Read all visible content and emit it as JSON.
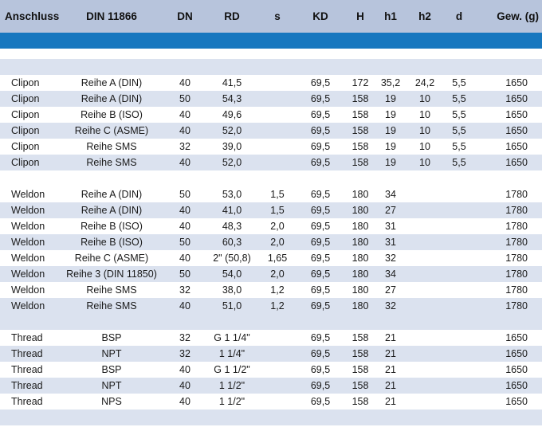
{
  "headers": [
    "Anschluss",
    "DIN 11866",
    "DN",
    "RD",
    "s",
    "KD",
    "H",
    "h1",
    "h2",
    "d",
    "Gew. (g)"
  ],
  "clipon_rows": [
    [
      "Clipon",
      "Reihe A (DIN)",
      "40",
      "41,5",
      "",
      "69,5",
      "172",
      "35,2",
      "24,2",
      "5,5",
      "1650"
    ],
    [
      "Clipon",
      "Reihe A (DIN)",
      "50",
      "54,3",
      "",
      "69,5",
      "158",
      "19",
      "10",
      "5,5",
      "1650"
    ],
    [
      "Clipon",
      "Reihe B (ISO)",
      "40",
      "49,6",
      "",
      "69,5",
      "158",
      "19",
      "10",
      "5,5",
      "1650"
    ],
    [
      "Clipon",
      "Reihe C (ASME)",
      "40",
      "52,0",
      "",
      "69,5",
      "158",
      "19",
      "10",
      "5,5",
      "1650"
    ],
    [
      "Clipon",
      "Reihe SMS",
      "32",
      "39,0",
      "",
      "69,5",
      "158",
      "19",
      "10",
      "5,5",
      "1650"
    ],
    [
      "Clipon",
      "Reihe SMS",
      "40",
      "52,0",
      "",
      "69,5",
      "158",
      "19",
      "10",
      "5,5",
      "1650"
    ]
  ],
  "weldon_rows": [
    [
      "Weldon",
      "Reihe A (DIN)",
      "50",
      "53,0",
      "1,5",
      "69,5",
      "180",
      "34",
      "",
      "",
      "1780"
    ],
    [
      "Weldon",
      "Reihe A (DIN)",
      "40",
      "41,0",
      "1,5",
      "69,5",
      "180",
      "27",
      "",
      "",
      "1780"
    ],
    [
      "Weldon",
      "Reihe B (ISO)",
      "40",
      "48,3",
      "2,0",
      "69,5",
      "180",
      "31",
      "",
      "",
      "1780"
    ],
    [
      "Weldon",
      "Reihe B (ISO)",
      "50",
      "60,3",
      "2,0",
      "69,5",
      "180",
      "31",
      "",
      "",
      "1780"
    ],
    [
      "Weldon",
      "Reihe C (ASME)",
      "40",
      "2\" (50,8)",
      "1,65",
      "69,5",
      "180",
      "32",
      "",
      "",
      "1780"
    ],
    [
      "Weldon",
      "Reihe 3 (DIN 11850)",
      "50",
      "54,0",
      "2,0",
      "69,5",
      "180",
      "34",
      "",
      "",
      "1780"
    ],
    [
      "Weldon",
      "Reihe SMS",
      "32",
      "38,0",
      "1,2",
      "69,5",
      "180",
      "27",
      "",
      "",
      "1780"
    ],
    [
      "Weldon",
      "Reihe SMS",
      "40",
      "51,0",
      "1,2",
      "69,5",
      "180",
      "32",
      "",
      "",
      "1780"
    ]
  ],
  "thread_rows": [
    [
      "Thread",
      "BSP",
      "32",
      "G 1 1/4\"",
      "",
      "69,5",
      "158",
      "21",
      "",
      "",
      "1650"
    ],
    [
      "Thread",
      "NPT",
      "32",
      "1 1/4\"",
      "",
      "69,5",
      "158",
      "21",
      "",
      "",
      "1650"
    ],
    [
      "Thread",
      "BSP",
      "40",
      "G 1 1/2\"",
      "",
      "69,5",
      "158",
      "21",
      "",
      "",
      "1650"
    ],
    [
      "Thread",
      "NPT",
      "40",
      "1 1/2\"",
      "",
      "69,5",
      "158",
      "21",
      "",
      "",
      "1650"
    ],
    [
      "Thread",
      "NPS",
      "40",
      "1 1/2\"",
      "",
      "69,5",
      "158",
      "21",
      "",
      "",
      "1650"
    ]
  ],
  "colors": {
    "header_bg": "#b7c4dc",
    "band": "#1777bf",
    "row_tint": "#dbe2ef"
  }
}
